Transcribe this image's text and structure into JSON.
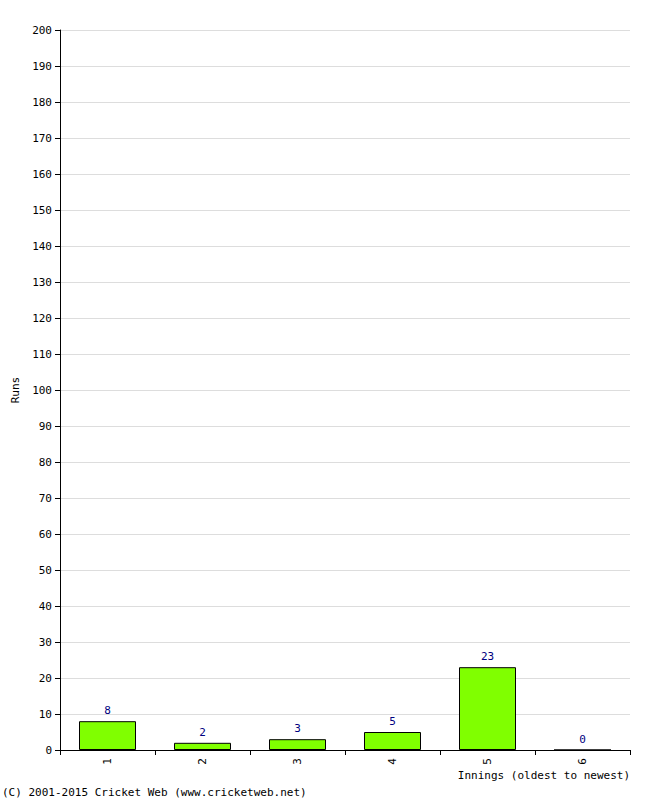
{
  "chart_data": {
    "type": "bar",
    "y_label": "Runs",
    "x_label": "Innings (oldest to newest)",
    "annotations": [
      "(C) 2001-2015 Cricket Web (www.cricketweb.net)"
    ],
    "categories": [
      "1",
      "2",
      "3",
      "4",
      "5",
      "6"
    ],
    "values": [
      8,
      2,
      3,
      5,
      23,
      0
    ],
    "color": "#80ff00",
    "ylim": [
      0,
      200
    ],
    "yticks": [
      0,
      10,
      20,
      30,
      40,
      50,
      60,
      70,
      80,
      90,
      100,
      110,
      120,
      130,
      140,
      150,
      160,
      170,
      180,
      190,
      200
    ],
    "grid": true,
    "data_labels": true
  }
}
